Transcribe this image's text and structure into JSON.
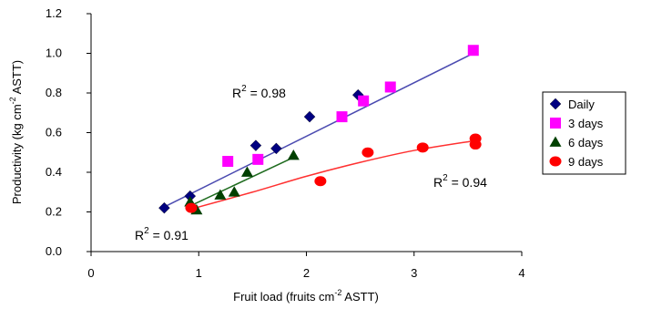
{
  "chart_data": {
    "type": "scatter",
    "xlabel": {
      "prefix": "Fruit load (fruits cm",
      "sup": "-2",
      "suffix": " ASTT)"
    },
    "ylabel": {
      "prefix": "Productivity (kg cm",
      "sup": "-2",
      "suffix": " ASTT)"
    },
    "xlim": [
      0,
      4
    ],
    "ylim": [
      0.0,
      1.2
    ],
    "x_ticks": [
      0,
      1,
      2,
      3,
      4
    ],
    "x_tick_labels": [
      "0",
      "1",
      "2",
      "3",
      "4"
    ],
    "y_ticks": [
      0.0,
      0.2,
      0.4,
      0.6,
      0.8,
      1.0,
      1.2
    ],
    "y_tick_labels": [
      "0.0",
      "0.2",
      "0.4",
      "0.6",
      "0.8",
      "1.0",
      "1.2"
    ],
    "grid": false,
    "legend_position": "right",
    "series": [
      {
        "name": "Daily",
        "marker": "diamond",
        "color": "#000080",
        "points": [
          [
            0.68,
            0.22
          ],
          [
            0.92,
            0.28
          ],
          [
            1.53,
            0.535
          ],
          [
            1.72,
            0.52
          ],
          [
            2.03,
            0.68
          ],
          [
            2.48,
            0.79
          ]
        ],
        "trend": {
          "type": "linear",
          "x_range": [
            0.66,
            3.55
          ],
          "y_range": [
            0.22,
            1.0
          ],
          "color": "#4a4ab0"
        },
        "annotation": {
          "prefix": "R",
          "sup": "2",
          "suffix": " = 0.98",
          "color": "#3a3aa8"
        }
      },
      {
        "name": "3 days",
        "marker": "square",
        "color": "#ff00ff",
        "points": [
          [
            1.27,
            0.455
          ],
          [
            1.55,
            0.465
          ],
          [
            2.33,
            0.68
          ],
          [
            2.53,
            0.76
          ],
          [
            2.78,
            0.83
          ],
          [
            3.55,
            1.015
          ]
        ],
        "trend": null,
        "annotation": null
      },
      {
        "name": "6 days",
        "marker": "triangle",
        "color": "#004000",
        "points": [
          [
            0.92,
            0.25
          ],
          [
            0.98,
            0.21
          ],
          [
            1.2,
            0.285
          ],
          [
            1.33,
            0.3
          ],
          [
            1.45,
            0.4
          ],
          [
            1.88,
            0.485
          ]
        ],
        "trend": {
          "type": "linear",
          "x_range": [
            0.9,
            1.88
          ],
          "y_range": [
            0.225,
            0.475
          ],
          "color": "#1e6b1e"
        },
        "annotation": {
          "prefix": "R",
          "sup": "2",
          "suffix": " = 0.91",
          "color": "#1e5a1e"
        }
      },
      {
        "name": "9 days",
        "marker": "circle",
        "color": "#ff0000",
        "points": [
          [
            0.93,
            0.22
          ],
          [
            2.13,
            0.355
          ],
          [
            2.57,
            0.5
          ],
          [
            3.08,
            0.525
          ],
          [
            3.57,
            0.54
          ],
          [
            3.57,
            0.57
          ]
        ],
        "trend": {
          "type": "curve",
          "x": [
            0.9,
            1.5,
            2.0,
            2.5,
            3.0,
            3.57
          ],
          "y": [
            0.21,
            0.3,
            0.38,
            0.45,
            0.51,
            0.56
          ],
          "color": "#ff3030"
        },
        "annotation": {
          "prefix": "R",
          "sup": "2",
          "suffix": " = 0.94",
          "color": "#ff0000"
        }
      }
    ]
  }
}
